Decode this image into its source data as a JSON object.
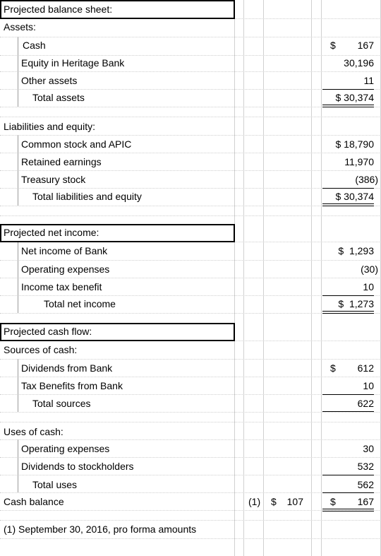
{
  "balance_sheet": {
    "title": "Projected balance sheet:",
    "assets_header": "Assets:",
    "rows": [
      {
        "label": "Cash",
        "value": "167",
        "dollar": "$"
      },
      {
        "label": "Equity in Heritage Bank",
        "value": "30,196"
      },
      {
        "label": "Other assets",
        "value": "11"
      },
      {
        "label": "Total assets",
        "value": "$ 30,374"
      }
    ],
    "liab_header": "Liabilities and equity:",
    "liab_rows": [
      {
        "label": "Common stock and APIC",
        "value": "$ 18,790"
      },
      {
        "label": "Retained earnings",
        "value": "11,970"
      },
      {
        "label": "Treasury stock",
        "value": "(386)"
      },
      {
        "label": "Total liabilities and equity",
        "value": "$ 30,374"
      }
    ]
  },
  "net_income": {
    "title": "Projected net income:",
    "rows": [
      {
        "label": "Net income of Bank",
        "value": "$  1,293"
      },
      {
        "label": "Operating expenses",
        "value": "(30)"
      },
      {
        "label": "Income tax benefit",
        "value": "10"
      },
      {
        "label": "Total net income",
        "value": "$  1,273"
      }
    ]
  },
  "cash_flow": {
    "title": "Projected cash flow:",
    "sources_header": "Sources of cash:",
    "sources": [
      {
        "label": "Dividends from Bank",
        "value": "612",
        "dollar": "$"
      },
      {
        "label": "Tax Benefits from Bank",
        "value": "10"
      },
      {
        "label": "Total sources",
        "value": "622"
      }
    ],
    "uses_header": "Uses of cash:",
    "uses": [
      {
        "label": "Operating expenses",
        "value": "30"
      },
      {
        "label": "Dividends to stockholders",
        "value": "532"
      },
      {
        "label": "Total uses",
        "value": "562"
      }
    ],
    "balance_label": "Cash balance",
    "proforma_note_ref": "(1)",
    "proforma_dollar": "$",
    "proforma_value": "107",
    "balance_dollar": "$",
    "balance_value": "167"
  },
  "footnote": "(1) September 30, 2016, pro forma amounts"
}
